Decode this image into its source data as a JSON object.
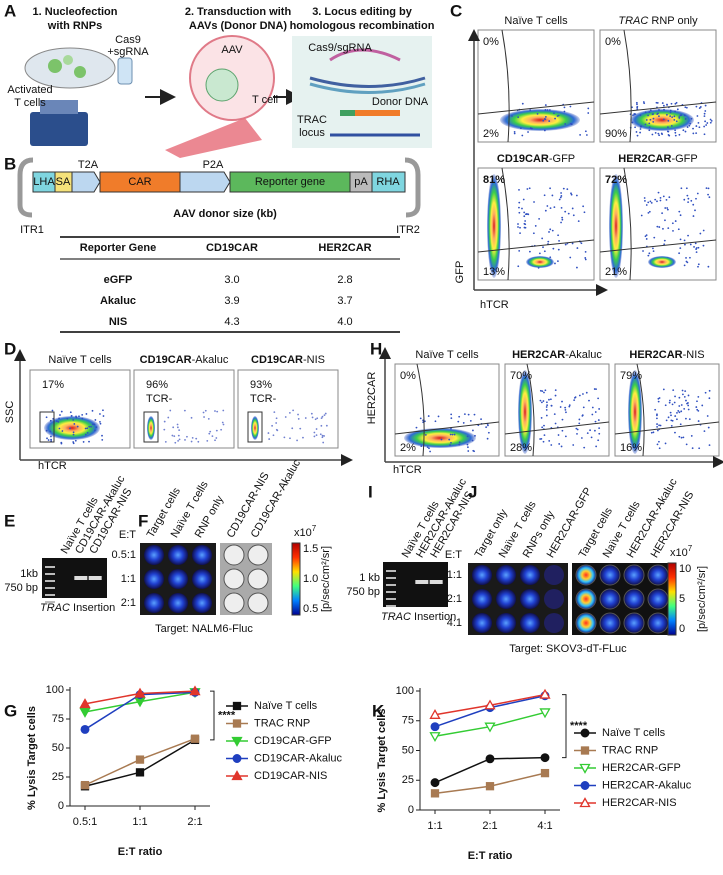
{
  "panel_labels": [
    "A",
    "B",
    "C",
    "D",
    "E",
    "F",
    "G",
    "H",
    "I",
    "J",
    "K"
  ],
  "a": {
    "step1": [
      "1. Nucleofection",
      "with RNPs"
    ],
    "cas9": [
      "Cas9",
      "+sgRNA"
    ],
    "activated": [
      "Activated",
      "T cells"
    ],
    "step2": [
      "2. Transduction with",
      "AAVs (Donor DNA)"
    ],
    "aav": "AAV",
    "tcell": "T cell",
    "step3": [
      "3. Locus editing by",
      "homologous recombination"
    ],
    "cas9sg": "Cas9/sgRNA",
    "donor": "Donor DNA",
    "trac": [
      "TRAC",
      "locus"
    ]
  },
  "b": {
    "construct": [
      "LHA",
      "SA",
      "T2A",
      "CAR",
      "P2A",
      "Reporter gene",
      "pA",
      "RHA"
    ],
    "itr": [
      "ITR1",
      "ITR2"
    ],
    "table": {
      "title": "AAV donor size (kb)",
      "header": [
        "Reporter Gene",
        "CD19CAR",
        "HER2CAR"
      ],
      "rows": [
        [
          "eGFP",
          "3.0",
          "2.8"
        ],
        [
          "Akaluc",
          "3.9",
          "3.7"
        ],
        [
          "NIS",
          "4.3",
          "4.0"
        ]
      ]
    }
  },
  "c": {
    "plots": [
      {
        "title": [
          "Naïve T cells"
        ],
        "emphasis": "none",
        "top": "0%",
        "bottom": "2%"
      },
      {
        "title": [
          "TRAC",
          " RNP only"
        ],
        "emphasis": "italic",
        "top": "0%",
        "bottom": "90%"
      },
      {
        "title": [
          "CD19CAR",
          "-GFP"
        ],
        "emphasis": "bold",
        "top": "81%",
        "bottom": "13%"
      },
      {
        "title": [
          "HER2CAR",
          "-GFP"
        ],
        "emphasis": "bold",
        "top": "72%",
        "bottom": "21%"
      }
    ],
    "y_label": "GFP",
    "x_label": "hTCR"
  },
  "d": {
    "plots": [
      {
        "title": [
          "Naïve T cells"
        ],
        "emphasis": "none",
        "label": [
          "17%"
        ]
      },
      {
        "title": [
          "CD19CAR",
          "-Akaluc"
        ],
        "emphasis": "bold",
        "label": [
          "96%",
          "TCR-"
        ]
      },
      {
        "title": [
          "CD19CAR",
          "-NIS"
        ],
        "emphasis": "bold",
        "label": [
          "93%",
          "TCR-"
        ]
      }
    ],
    "y_label": "SSC",
    "x_label": "hTCR"
  },
  "h": {
    "plots": [
      {
        "title": [
          "Naïve T cells"
        ],
        "emphasis": "none",
        "top": "0%",
        "bottom": "2%"
      },
      {
        "title": [
          "HER2CAR",
          "-Akaluc"
        ],
        "emphasis": "bold",
        "top": "70%",
        "bottom": "28%"
      },
      {
        "title": [
          "HER2CAR",
          "-NIS"
        ],
        "emphasis": "bold",
        "top": "79%",
        "bottom": "16%"
      }
    ],
    "y_label": "HER2CAR",
    "x_label": "hTCR"
  },
  "e": {
    "lanes": [
      "Naïve T cells",
      "CD19CAR-Akaluc",
      "CD19CAR-NIS"
    ],
    "markers": [
      "1kb",
      "750 bp"
    ],
    "caption": [
      "TRAC",
      " Insertion"
    ]
  },
  "f": {
    "columns": [
      "Target cells",
      "Naïve T cells",
      "RNP only",
      "CD19CAR-NIS",
      "CD19CAR-Akaluc"
    ],
    "et": "E:T",
    "rows": [
      "0.5:1",
      "1:1",
      "2:1"
    ],
    "scale": [
      "x10",
      "7"
    ],
    "colorbar_ticks": [
      "1.5",
      "1.0",
      "0.5"
    ],
    "unit": "[p/sec/cm²/sr]",
    "target": "Target: NALM6-Fluc"
  },
  "i": {
    "lanes": [
      "Naïve T cells",
      "HER2CAR-Akaluc",
      "HER2CAR-NIS"
    ],
    "markers": [
      "1 kb",
      "750 bp"
    ],
    "caption": [
      "TRAC",
      " Insertion"
    ]
  },
  "j": {
    "columns": [
      "Target only",
      "Naïve T cells",
      "RNPs only",
      "HER2CAR-GFP",
      "Target cells",
      "Naïve T cells",
      "HER2CAR-Akaluc",
      "HER2CAR-NIS"
    ],
    "et": "E:T",
    "rows": [
      "1:1",
      "2:1",
      "4:1"
    ],
    "scale": [
      "x10",
      "7"
    ],
    "colorbar_ticks": [
      "10",
      "5",
      "0"
    ],
    "unit": "[p/sec/cm²/sr]",
    "target": "Target: SKOV3-dT-FLuc"
  },
  "chart_data": [
    {
      "type": "line",
      "y_label": "% Lysis Target cells",
      "x_label": "E:T ratio",
      "categories": [
        "0.5:1",
        "1:1",
        "2:1"
      ],
      "ylim": [
        0,
        100
      ],
      "yticks": [
        0,
        25,
        50,
        75,
        100
      ],
      "significance": "****",
      "series": [
        {
          "name": "Naïve T cells",
          "color": "#111111",
          "marker": "square",
          "marker_filled": true,
          "values": [
            17,
            29,
            57
          ]
        },
        {
          "name": "TRAC RNP",
          "color": "#a87a52",
          "marker": "square",
          "marker_filled": true,
          "values": [
            18,
            40,
            58
          ]
        },
        {
          "name": "CD19CAR-GFP",
          "color": "#33cc33",
          "marker": "triangle-down",
          "marker_filled": true,
          "values": [
            81,
            90,
            98
          ]
        },
        {
          "name": "CD19CAR-Akaluc",
          "color": "#1f3fbf",
          "marker": "circle",
          "marker_filled": true,
          "values": [
            66,
            96,
            98
          ]
        },
        {
          "name": "CD19CAR-NIS",
          "color": "#e0352b",
          "marker": "triangle",
          "marker_filled": true,
          "values": [
            88,
            97,
            99
          ]
        }
      ]
    },
    {
      "type": "line",
      "y_label": "% Lysis Target cells",
      "x_label": "E:T ratio",
      "categories": [
        "1:1",
        "2:1",
        "4:1"
      ],
      "ylim": [
        0,
        100
      ],
      "yticks": [
        0,
        25,
        50,
        75,
        100
      ],
      "significance": "****",
      "series": [
        {
          "name": "Naïve T cells",
          "color": "#111111",
          "marker": "circle",
          "marker_filled": true,
          "values": [
            23,
            43,
            44
          ]
        },
        {
          "name": "TRAC RNP",
          "color": "#a87a52",
          "marker": "square",
          "marker_filled": true,
          "values": [
            14,
            20,
            31
          ]
        },
        {
          "name": "HER2CAR-GFP",
          "color": "#33cc33",
          "marker": "triangle-down",
          "marker_filled": false,
          "values": [
            62,
            70,
            82
          ]
        },
        {
          "name": "HER2CAR-Akaluc",
          "color": "#1f3fbf",
          "marker": "circle",
          "marker_filled": true,
          "values": [
            70,
            86,
            96
          ]
        },
        {
          "name": "HER2CAR-NIS",
          "color": "#e0352b",
          "marker": "triangle",
          "marker_filled": false,
          "values": [
            80,
            88,
            97
          ]
        }
      ]
    }
  ]
}
